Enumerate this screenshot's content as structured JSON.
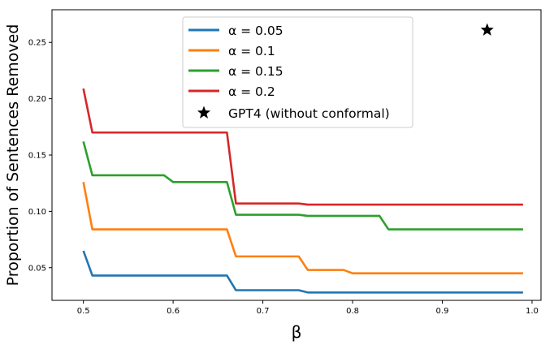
{
  "chart_data": {
    "type": "line",
    "title": "",
    "xlabel": "β",
    "ylabel": "Proportion of Sentences Removed",
    "xlim": [
      0.465,
      1.01
    ],
    "ylim": [
      0.021,
      0.279
    ],
    "xticks": [
      0.5,
      0.6,
      0.7,
      0.8,
      0.9,
      1.0
    ],
    "xtick_labels": [
      "0.5",
      "0.6",
      "0.7",
      "0.8",
      "0.9",
      "1.0"
    ],
    "yticks": [
      0.05,
      0.1,
      0.15,
      0.2,
      0.25
    ],
    "ytick_labels": [
      "0.05",
      "0.10",
      "0.15",
      "0.20",
      "0.25"
    ],
    "grid": false,
    "legend_position": "top-center",
    "series": [
      {
        "name": "α = 0.05",
        "color": "#1f77b4",
        "x": [
          0.5,
          0.51,
          0.66,
          0.67,
          0.74,
          0.75,
          0.99
        ],
        "y": [
          0.065,
          0.043,
          0.043,
          0.03,
          0.03,
          0.028,
          0.028
        ]
      },
      {
        "name": "α = 0.1",
        "color": "#ff7f0e",
        "x": [
          0.5,
          0.51,
          0.66,
          0.67,
          0.74,
          0.75,
          0.79,
          0.8,
          0.99
        ],
        "y": [
          0.126,
          0.084,
          0.084,
          0.06,
          0.06,
          0.048,
          0.048,
          0.045,
          0.045
        ]
      },
      {
        "name": "α = 0.15",
        "color": "#2ca02c",
        "x": [
          0.5,
          0.51,
          0.59,
          0.6,
          0.66,
          0.67,
          0.74,
          0.75,
          0.83,
          0.84,
          0.99
        ],
        "y": [
          0.162,
          0.132,
          0.132,
          0.126,
          0.126,
          0.097,
          0.097,
          0.096,
          0.096,
          0.084,
          0.084
        ]
      },
      {
        "name": "α = 0.2",
        "color": "#d62728",
        "x": [
          0.5,
          0.51,
          0.66,
          0.67,
          0.74,
          0.75,
          0.99
        ],
        "y": [
          0.209,
          0.17,
          0.17,
          0.107,
          0.107,
          0.106,
          0.106
        ]
      }
    ],
    "markers": [
      {
        "name": "GPT4 (without conformal)",
        "marker": "star",
        "color": "#000000",
        "x": 0.95,
        "y": 0.261
      }
    ]
  }
}
